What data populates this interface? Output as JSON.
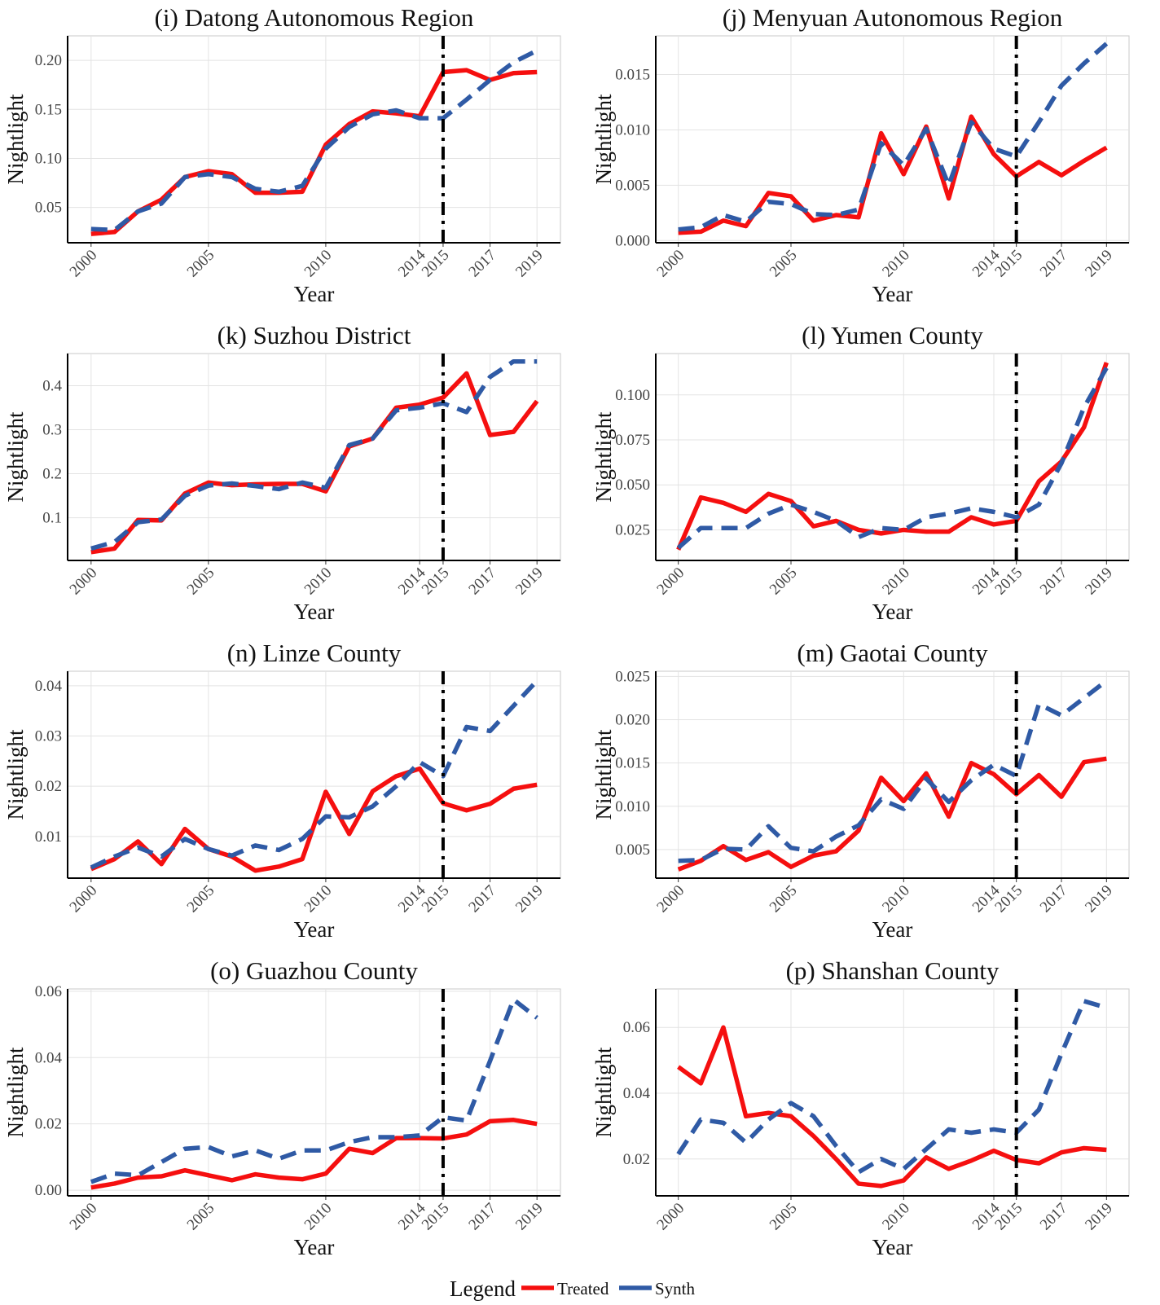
{
  "chart_data": [
    {
      "type": "line",
      "title": "(i) Datong Autonomous Region",
      "xlabel": "Year",
      "ylabel": "Nightlight",
      "x": [
        2000,
        2001,
        2002,
        2003,
        2004,
        2005,
        2006,
        2007,
        2008,
        2009,
        2010,
        2011,
        2012,
        2013,
        2014,
        2015,
        2016,
        2017,
        2018,
        2019
      ],
      "xlim": [
        1999,
        2020
      ],
      "xticks": [
        2000,
        2005,
        2010,
        2014,
        2015,
        2017,
        2019
      ],
      "ylim": [
        0.014,
        0.225
      ],
      "yticks": [
        0.05,
        {
          "value": 0.1,
          "label": "0.10"
        },
        0.15,
        {
          "value": 0.2,
          "label": "0.20"
        }
      ],
      "vline": 2015,
      "grid": true,
      "series": [
        {
          "name": "Treated",
          "color": "#f50f0f",
          "linestyle": "solid",
          "values": [
            0.023,
            0.025,
            0.046,
            0.058,
            0.081,
            0.087,
            0.084,
            0.065,
            0.065,
            0.066,
            0.114,
            0.135,
            0.148,
            0.146,
            0.143,
            0.188,
            0.19,
            0.18,
            0.187,
            0.188
          ]
        },
        {
          "name": "Synth",
          "color": "#2f5aa5",
          "linestyle": "dashed",
          "values": [
            0.028,
            0.027,
            0.046,
            0.054,
            0.081,
            0.084,
            0.081,
            0.069,
            0.066,
            0.072,
            0.11,
            0.132,
            0.145,
            0.149,
            0.141,
            0.141,
            0.16,
            0.18,
            0.198,
            0.21
          ]
        }
      ]
    },
    {
      "type": "line",
      "title": "(j) Menyuan Autonomous Region",
      "xlabel": "Year",
      "ylabel": "Nightlight",
      "x": [
        2000,
        2001,
        2002,
        2003,
        2004,
        2005,
        2006,
        2007,
        2008,
        2009,
        2010,
        2011,
        2012,
        2013,
        2014,
        2015,
        2016,
        2017,
        2018,
        2019
      ],
      "xlim": [
        1999,
        2020
      ],
      "xticks": [
        2000,
        2005,
        2010,
        2014,
        2015,
        2017,
        2019
      ],
      "ylim": [
        -0.0002,
        0.0185
      ],
      "yticks": [
        {
          "value": 0,
          "label": "0.000"
        },
        0.005,
        {
          "value": 0.01,
          "label": "0.010"
        },
        0.015
      ],
      "vline": 2015,
      "grid": true,
      "series": [
        {
          "name": "Treated",
          "color": "#f50f0f",
          "linestyle": "solid",
          "values": [
            0.0007,
            0.0008,
            0.0018,
            0.0013,
            0.0043,
            0.004,
            0.0018,
            0.0023,
            0.0021,
            0.0097,
            0.006,
            0.0103,
            0.0038,
            0.0112,
            0.0078,
            0.0058,
            0.0071,
            0.0059,
            0.0072,
            0.0084
          ]
        },
        {
          "name": "Synth",
          "color": "#2f5aa5",
          "linestyle": "dashed",
          "values": [
            0.001,
            0.0012,
            0.0023,
            0.0017,
            0.0035,
            0.0033,
            0.0024,
            0.0023,
            0.0028,
            0.0088,
            0.0068,
            0.0101,
            0.005,
            0.0107,
            0.0083,
            0.0076,
            0.0107,
            0.014,
            0.016,
            0.0178
          ]
        }
      ]
    },
    {
      "type": "line",
      "title": "(k) Suzhou District",
      "xlabel": "Year",
      "ylabel": "Nightlight",
      "x": [
        2000,
        2001,
        2002,
        2003,
        2004,
        2005,
        2006,
        2007,
        2008,
        2009,
        2010,
        2011,
        2012,
        2013,
        2014,
        2015,
        2016,
        2017,
        2018,
        2019
      ],
      "xlim": [
        1999,
        2020
      ],
      "xticks": [
        2000,
        2005,
        2010,
        2014,
        2015,
        2017,
        2019
      ],
      "ylim": [
        0.003,
        0.473
      ],
      "yticks": [
        0.1,
        0.2,
        0.3,
        0.4
      ],
      "vline": 2015,
      "grid": true,
      "series": [
        {
          "name": "Treated",
          "color": "#f50f0f",
          "linestyle": "solid",
          "values": [
            0.022,
            0.03,
            0.095,
            0.094,
            0.155,
            0.18,
            0.174,
            0.176,
            0.177,
            0.177,
            0.16,
            0.262,
            0.28,
            0.35,
            0.357,
            0.373,
            0.428,
            0.288,
            0.295,
            0.365
          ]
        },
        {
          "name": "Synth",
          "color": "#2f5aa5",
          "linestyle": "dashed",
          "values": [
            0.03,
            0.045,
            0.09,
            0.096,
            0.15,
            0.173,
            0.178,
            0.172,
            0.165,
            0.18,
            0.168,
            0.265,
            0.28,
            0.344,
            0.35,
            0.36,
            0.34,
            0.42,
            0.455,
            0.455
          ]
        }
      ]
    },
    {
      "type": "line",
      "title": "(l) Yumen County",
      "xlabel": "Year",
      "ylabel": "Nightlight",
      "x": [
        2000,
        2001,
        2002,
        2003,
        2004,
        2005,
        2006,
        2007,
        2008,
        2009,
        2010,
        2011,
        2012,
        2013,
        2014,
        2015,
        2016,
        2017,
        2018,
        2019
      ],
      "xlim": [
        1999,
        2020
      ],
      "xticks": [
        2000,
        2005,
        2010,
        2014,
        2015,
        2017,
        2019
      ],
      "ylim": [
        0.008,
        0.123
      ],
      "yticks": [
        0.025,
        {
          "value": 0.05,
          "label": "0.050"
        },
        0.075,
        {
          "value": 0.1,
          "label": "0.100"
        }
      ],
      "vline": 2015,
      "grid": true,
      "series": [
        {
          "name": "Treated",
          "color": "#f50f0f",
          "linestyle": "solid",
          "values": [
            0.014,
            0.043,
            0.04,
            0.035,
            0.045,
            0.041,
            0.027,
            0.03,
            0.025,
            0.023,
            0.025,
            0.024,
            0.024,
            0.032,
            0.028,
            0.03,
            0.052,
            0.063,
            0.082,
            0.118
          ]
        },
        {
          "name": "Synth",
          "color": "#2f5aa5",
          "linestyle": "dashed",
          "values": [
            0.015,
            0.026,
            0.026,
            0.026,
            0.034,
            0.039,
            0.035,
            0.03,
            0.021,
            0.026,
            0.025,
            0.032,
            0.034,
            0.037,
            0.035,
            0.032,
            0.039,
            0.062,
            0.093,
            0.115
          ]
        }
      ]
    },
    {
      "type": "line",
      "title": "(n) Linze County",
      "xlabel": "Year",
      "ylabel": "Nightlight",
      "x": [
        2000,
        2001,
        2002,
        2003,
        2004,
        2005,
        2006,
        2007,
        2008,
        2009,
        2010,
        2011,
        2012,
        2013,
        2014,
        2015,
        2016,
        2017,
        2018,
        2019
      ],
      "xlim": [
        1999,
        2020
      ],
      "xticks": [
        2000,
        2005,
        2010,
        2014,
        2015,
        2017,
        2019
      ],
      "ylim": [
        0.0017,
        0.0429
      ],
      "yticks": [
        0.01,
        0.02,
        0.03,
        0.04
      ],
      "vline": 2015,
      "grid": true,
      "series": [
        {
          "name": "Treated",
          "color": "#f50f0f",
          "linestyle": "solid",
          "values": [
            0.0035,
            0.0055,
            0.009,
            0.0045,
            0.0115,
            0.0075,
            0.006,
            0.0032,
            0.004,
            0.0055,
            0.0189,
            0.0105,
            0.019,
            0.022,
            0.0235,
            0.0166,
            0.0152,
            0.0165,
            0.0195,
            0.0203
          ]
        },
        {
          "name": "Synth",
          "color": "#2f5aa5",
          "linestyle": "dashed",
          "values": [
            0.0038,
            0.006,
            0.0078,
            0.006,
            0.0095,
            0.0075,
            0.0062,
            0.0082,
            0.0073,
            0.0095,
            0.014,
            0.0138,
            0.016,
            0.02,
            0.0248,
            0.022,
            0.0318,
            0.031,
            0.036,
            0.041
          ]
        }
      ]
    },
    {
      "type": "line",
      "title": "(m) Gaotai County",
      "xlabel": "Year",
      "ylabel": "Nightlight",
      "x": [
        2000,
        2001,
        2002,
        2003,
        2004,
        2005,
        2006,
        2007,
        2008,
        2009,
        2010,
        2011,
        2012,
        2013,
        2014,
        2015,
        2016,
        2017,
        2018,
        2019
      ],
      "xlim": [
        1999,
        2020
      ],
      "xticks": [
        2000,
        2005,
        2010,
        2014,
        2015,
        2017,
        2019
      ],
      "ylim": [
        0.0017,
        0.0256
      ],
      "yticks": [
        0.005,
        {
          "value": 0.01,
          "label": "0.010"
        },
        0.015,
        {
          "value": 0.02,
          "label": "0.020"
        },
        0.025
      ],
      "vline": 2015,
      "grid": true,
      "series": [
        {
          "name": "Treated",
          "color": "#f50f0f",
          "linestyle": "solid",
          "values": [
            0.0027,
            0.0037,
            0.0054,
            0.0038,
            0.0047,
            0.003,
            0.0043,
            0.0048,
            0.0072,
            0.0133,
            0.0106,
            0.0138,
            0.0088,
            0.015,
            0.0137,
            0.0114,
            0.0136,
            0.0111,
            0.0151,
            0.0155
          ]
        },
        {
          "name": "Synth",
          "color": "#2f5aa5",
          "linestyle": "dashed",
          "values": [
            0.0037,
            0.0038,
            0.0051,
            0.005,
            0.0077,
            0.0052,
            0.0048,
            0.0065,
            0.0078,
            0.0108,
            0.0097,
            0.0132,
            0.0105,
            0.013,
            0.0148,
            0.0135,
            0.0218,
            0.0205,
            0.0225,
            0.0245
          ]
        }
      ]
    },
    {
      "type": "line",
      "title": "(o) Guazhou County",
      "xlabel": "Year",
      "ylabel": "Nightlight",
      "x": [
        2000,
        2001,
        2002,
        2003,
        2004,
        2005,
        2006,
        2007,
        2008,
        2009,
        2010,
        2011,
        2012,
        2013,
        2014,
        2015,
        2016,
        2017,
        2018,
        2019
      ],
      "xlim": [
        1999,
        2020
      ],
      "xticks": [
        2000,
        2005,
        2010,
        2014,
        2015,
        2017,
        2019
      ],
      "ylim": [
        -0.0017,
        0.0607
      ],
      "yticks": [
        {
          "value": 0,
          "label": "0.00"
        },
        0.02,
        0.04,
        0.06
      ],
      "vline": 2015,
      "grid": true,
      "series": [
        {
          "name": "Treated",
          "color": "#f50f0f",
          "linestyle": "solid",
          "values": [
            0.0008,
            0.002,
            0.0038,
            0.0042,
            0.006,
            0.0045,
            0.003,
            0.0048,
            0.0038,
            0.0033,
            0.005,
            0.0125,
            0.0112,
            0.0157,
            0.0157,
            0.0156,
            0.0168,
            0.0208,
            0.0212,
            0.02
          ]
        },
        {
          "name": "Synth",
          "color": "#2f5aa5",
          "linestyle": "dashed",
          "values": [
            0.0025,
            0.005,
            0.0045,
            0.0085,
            0.0125,
            0.013,
            0.0102,
            0.012,
            0.0095,
            0.012,
            0.012,
            0.0145,
            0.016,
            0.016,
            0.0165,
            0.022,
            0.021,
            0.039,
            0.0575,
            0.052
          ]
        }
      ]
    },
    {
      "type": "line",
      "title": "(p) Shanshan County",
      "xlabel": "Year",
      "ylabel": "Nightlight",
      "x": [
        2000,
        2001,
        2002,
        2003,
        2004,
        2005,
        2006,
        2007,
        2008,
        2009,
        2010,
        2011,
        2012,
        2013,
        2014,
        2015,
        2016,
        2017,
        2018,
        2019
      ],
      "xlim": [
        1999,
        2020
      ],
      "xticks": [
        2000,
        2005,
        2010,
        2014,
        2015,
        2017,
        2019
      ],
      "ylim": [
        0.0088,
        0.0717
      ],
      "yticks": [
        0.02,
        0.04,
        0.06
      ],
      "vline": 2015,
      "grid": true,
      "series": [
        {
          "name": "Treated",
          "color": "#f50f0f",
          "linestyle": "solid",
          "values": [
            0.048,
            0.043,
            0.06,
            0.033,
            0.034,
            0.033,
            0.027,
            0.02,
            0.0125,
            0.0118,
            0.0135,
            0.0205,
            0.017,
            0.0195,
            0.0225,
            0.0197,
            0.0187,
            0.022,
            0.0233,
            0.0228
          ]
        },
        {
          "name": "Synth",
          "color": "#2f5aa5",
          "linestyle": "dashed",
          "values": [
            0.0215,
            0.032,
            0.031,
            0.025,
            0.032,
            0.037,
            0.033,
            0.024,
            0.016,
            0.02,
            0.017,
            0.023,
            0.029,
            0.028,
            0.029,
            0.028,
            0.035,
            0.052,
            0.068,
            0.066
          ]
        }
      ]
    }
  ],
  "legend": {
    "title": "Legend"
  }
}
